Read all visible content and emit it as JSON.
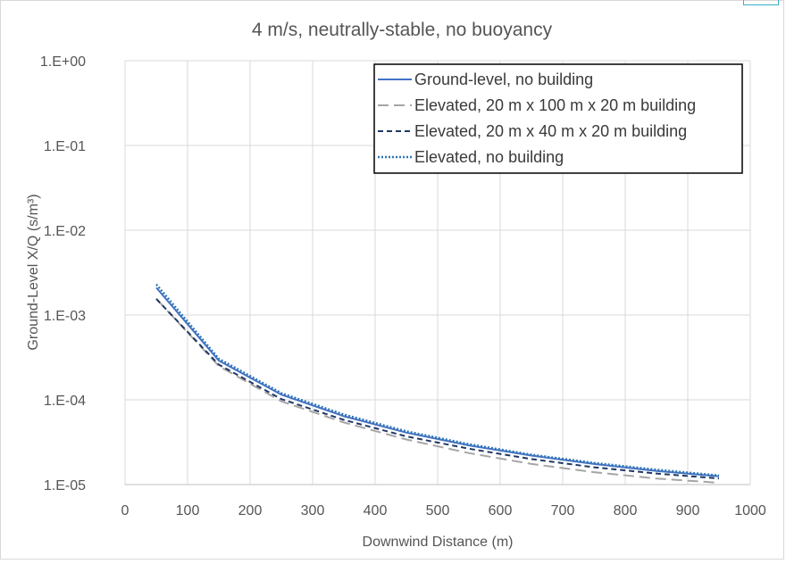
{
  "chart_data": {
    "type": "line",
    "title": "4 m/s, neutrally-stable, no buoyancy",
    "xlabel": "Downwind Distance (m)",
    "ylabel": "Ground-Level X/Q (s/m³)",
    "xlim": [
      0,
      1000
    ],
    "ylim": [
      1e-05,
      1
    ],
    "y_scale": "log",
    "grid": true,
    "legend_position": "top-right",
    "x_ticks": [
      "0",
      "100",
      "200",
      "300",
      "400",
      "500",
      "600",
      "700",
      "800",
      "900",
      "1000"
    ],
    "y_ticks": [
      "1.E-05",
      "1.E-04",
      "1.E-03",
      "1.E-02",
      "1.E-01",
      "1.E+00"
    ],
    "x": [
      50,
      150,
      250,
      350,
      450,
      550,
      650,
      750,
      850,
      950
    ],
    "series": [
      {
        "name": "Ground-level, no building",
        "color": "#4472c4",
        "dash": "solid",
        "values": [
          0.0021,
          0.00029,
          0.000115,
          6.4e-05,
          4.1e-05,
          2.9e-05,
          2.2e-05,
          1.75e-05,
          1.45e-05,
          1.25e-05
        ]
      },
      {
        "name": "Elevated, 20 m x 100 m x 20 m building",
        "color": "#a5a5a5",
        "dash": "long-dash",
        "values": [
          0.00155,
          0.00025,
          9.6e-05,
          5.4e-05,
          3.4e-05,
          2.35e-05,
          1.75e-05,
          1.4e-05,
          1.18e-05,
          1.05e-05
        ]
      },
      {
        "name": "Elevated, 20 m x 40 m x 20 m building",
        "color": "#203864",
        "dash": "short-dash",
        "values": [
          0.00155,
          0.00026,
          0.000102,
          5.8e-05,
          3.7e-05,
          2.65e-05,
          2e-05,
          1.6e-05,
          1.35e-05,
          1.18e-05
        ]
      },
      {
        "name": "Elevated, no building",
        "color": "#2e75b6",
        "dash": "dotted",
        "values": [
          0.0023,
          0.000305,
          0.00012,
          6.7e-05,
          4.25e-05,
          3e-05,
          2.25e-05,
          1.8e-05,
          1.5e-05,
          1.28e-05
        ]
      }
    ]
  }
}
